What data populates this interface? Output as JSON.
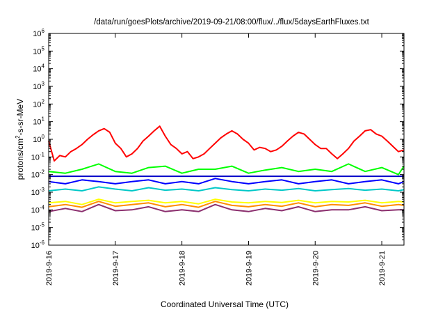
{
  "chart_data": {
    "type": "line",
    "title": "/data/run/goesPlots/archive/2019-09-21/08:00/flux/../flux/5daysEarthFluxes.txt",
    "xlabel": "Coordinated Universal Time (UTC)",
    "ylabel": {
      "pre": "protons/cm",
      "sup": "2",
      "post": "-s-sr-MeV"
    },
    "yscale": "log",
    "ylim": [
      1e-06,
      1000000.0
    ],
    "y_ticks": [
      {
        "value": 1e-06,
        "base": "10",
        "exp": "-6"
      },
      {
        "value": 1e-05,
        "base": "10",
        "exp": "-5"
      },
      {
        "value": 0.0001,
        "base": "10",
        "exp": "-4"
      },
      {
        "value": 0.001,
        "base": "10",
        "exp": "-3"
      },
      {
        "value": 0.01,
        "base": "10",
        "exp": "-2"
      },
      {
        "value": 0.1,
        "base": "10",
        "exp": "-1"
      },
      {
        "value": 1.0,
        "base": "10",
        "exp": "0"
      },
      {
        "value": 10.0,
        "base": "10",
        "exp": "1"
      },
      {
        "value": 100.0,
        "base": "10",
        "exp": "2"
      },
      {
        "value": 1000.0,
        "base": "10",
        "exp": "3"
      },
      {
        "value": 10000.0,
        "base": "10",
        "exp": "4"
      },
      {
        "value": 100000.0,
        "base": "10",
        "exp": "5"
      },
      {
        "value": 1000000.0,
        "base": "10",
        "exp": "6"
      }
    ],
    "xlim": [
      "2019-09-16 00:00",
      "2019-09-21 08:00"
    ],
    "x_ticks": [
      "2019-9-16",
      "2019-9-17",
      "2019-9-18",
      "2019-9-19",
      "2019-9-20",
      "2019-9-21"
    ],
    "grid": false,
    "legend": "none",
    "series": [
      {
        "color": "#ff0000",
        "x": [
          "2019-09-16 00:00",
          "2019-09-16 02:00",
          "2019-09-16 04:00",
          "2019-09-16 06:00",
          "2019-09-16 08:00",
          "2019-09-16 10:00",
          "2019-09-16 12:00",
          "2019-09-16 14:00",
          "2019-09-16 16:00",
          "2019-09-16 18:00",
          "2019-09-16 20:00",
          "2019-09-16 22:00",
          "2019-09-17 00:00",
          "2019-09-17 02:00",
          "2019-09-17 04:00",
          "2019-09-17 06:00",
          "2019-09-17 08:00",
          "2019-09-17 10:00",
          "2019-09-17 12:00",
          "2019-09-17 14:00",
          "2019-09-17 16:00",
          "2019-09-17 18:00",
          "2019-09-17 20:00",
          "2019-09-17 22:00",
          "2019-09-18 00:00",
          "2019-09-18 02:00",
          "2019-09-18 04:00",
          "2019-09-18 06:00",
          "2019-09-18 08:00",
          "2019-09-18 10:00",
          "2019-09-18 12:00",
          "2019-09-18 14:00",
          "2019-09-18 16:00",
          "2019-09-18 18:00",
          "2019-09-18 20:00",
          "2019-09-18 22:00",
          "2019-09-19 00:00",
          "2019-09-19 02:00",
          "2019-09-19 04:00",
          "2019-09-19 06:00",
          "2019-09-19 08:00",
          "2019-09-19 10:00",
          "2019-09-19 12:00",
          "2019-09-19 14:00",
          "2019-09-19 16:00",
          "2019-09-19 18:00",
          "2019-09-19 20:00",
          "2019-09-19 22:00",
          "2019-09-20 00:00",
          "2019-09-20 02:00",
          "2019-09-20 04:00",
          "2019-09-20 06:00",
          "2019-09-20 08:00",
          "2019-09-20 10:00",
          "2019-09-20 12:00",
          "2019-09-20 14:00",
          "2019-09-20 16:00",
          "2019-09-20 18:00",
          "2019-09-20 20:00",
          "2019-09-20 22:00",
          "2019-09-21 00:00",
          "2019-09-21 02:00",
          "2019-09-21 04:00",
          "2019-09-21 06:00",
          "2019-09-21 08:00"
        ],
        "y": [
          0.8,
          0.06,
          0.12,
          0.1,
          0.2,
          0.3,
          0.5,
          1.0,
          1.8,
          3.0,
          4.0,
          2.5,
          0.6,
          0.3,
          0.1,
          0.15,
          0.3,
          0.8,
          1.5,
          3.0,
          5.5,
          1.5,
          0.5,
          0.3,
          0.15,
          0.2,
          0.08,
          0.1,
          0.15,
          0.3,
          0.6,
          1.2,
          2.0,
          3.0,
          2.0,
          1.0,
          0.6,
          0.25,
          0.35,
          0.3,
          0.2,
          0.25,
          0.4,
          0.8,
          1.5,
          2.5,
          2.0,
          1.0,
          0.5,
          0.3,
          0.3,
          0.15,
          0.08,
          0.15,
          0.3,
          0.8,
          1.5,
          3.0,
          3.5,
          2.0,
          1.5,
          0.8,
          0.4,
          0.2,
          0.25
        ]
      },
      {
        "color": "#00ff00",
        "x": [
          "2019-09-16 00:00",
          "2019-09-16 06:00",
          "2019-09-16 12:00",
          "2019-09-16 18:00",
          "2019-09-17 00:00",
          "2019-09-17 06:00",
          "2019-09-17 12:00",
          "2019-09-17 18:00",
          "2019-09-18 00:00",
          "2019-09-18 06:00",
          "2019-09-18 12:00",
          "2019-09-18 18:00",
          "2019-09-19 00:00",
          "2019-09-19 06:00",
          "2019-09-19 12:00",
          "2019-09-19 18:00",
          "2019-09-20 00:00",
          "2019-09-20 06:00",
          "2019-09-20 12:00",
          "2019-09-20 18:00",
          "2019-09-21 00:00",
          "2019-09-21 06:00",
          "2019-09-21 08:00"
        ],
        "y": [
          0.015,
          0.012,
          0.02,
          0.04,
          0.015,
          0.012,
          0.025,
          0.03,
          0.012,
          0.02,
          0.02,
          0.03,
          0.012,
          0.018,
          0.025,
          0.015,
          0.02,
          0.015,
          0.04,
          0.015,
          0.025,
          0.01,
          0.03
        ]
      },
      {
        "color": "#0000ff",
        "x": [
          "2019-09-16 00:00",
          "2019-09-16 06:00",
          "2019-09-16 12:00",
          "2019-09-16 18:00",
          "2019-09-17 00:00",
          "2019-09-17 06:00",
          "2019-09-17 12:00",
          "2019-09-17 18:00",
          "2019-09-18 00:00",
          "2019-09-18 06:00",
          "2019-09-18 12:00",
          "2019-09-18 18:00",
          "2019-09-19 00:00",
          "2019-09-19 06:00",
          "2019-09-19 12:00",
          "2019-09-19 18:00",
          "2019-09-20 00:00",
          "2019-09-20 06:00",
          "2019-09-20 12:00",
          "2019-09-20 18:00",
          "2019-09-21 00:00",
          "2019-09-21 06:00",
          "2019-09-21 08:00"
        ],
        "y": [
          0.004,
          0.003,
          0.005,
          0.004,
          0.003,
          0.004,
          0.005,
          0.003,
          0.004,
          0.003,
          0.006,
          0.004,
          0.003,
          0.004,
          0.005,
          0.003,
          0.004,
          0.005,
          0.003,
          0.004,
          0.005,
          0.003,
          0.004
        ]
      },
      {
        "color": "#0000c8",
        "x": [
          "2019-09-16 00:00",
          "2019-09-17 00:00",
          "2019-09-18 00:00",
          "2019-09-19 00:00",
          "2019-09-20 00:00",
          "2019-09-21 00:00",
          "2019-09-21 08:00"
        ],
        "y": [
          0.008,
          0.008,
          0.008,
          0.008,
          0.008,
          0.008,
          0.008
        ]
      },
      {
        "color": "#00c8c8",
        "x": [
          "2019-09-16 00:00",
          "2019-09-16 06:00",
          "2019-09-16 12:00",
          "2019-09-16 18:00",
          "2019-09-17 00:00",
          "2019-09-17 06:00",
          "2019-09-17 12:00",
          "2019-09-17 18:00",
          "2019-09-18 00:00",
          "2019-09-18 06:00",
          "2019-09-18 12:00",
          "2019-09-18 18:00",
          "2019-09-19 00:00",
          "2019-09-19 06:00",
          "2019-09-19 12:00",
          "2019-09-19 18:00",
          "2019-09-20 00:00",
          "2019-09-20 06:00",
          "2019-09-20 12:00",
          "2019-09-20 18:00",
          "2019-09-21 00:00",
          "2019-09-21 06:00",
          "2019-09-21 08:00"
        ],
        "y": [
          0.0012,
          0.0015,
          0.0012,
          0.002,
          0.0015,
          0.0012,
          0.0018,
          0.0013,
          0.0015,
          0.0012,
          0.0018,
          0.0014,
          0.0012,
          0.0015,
          0.0013,
          0.0016,
          0.0012,
          0.0014,
          0.0016,
          0.0013,
          0.0015,
          0.0012,
          0.0014
        ]
      },
      {
        "color": "#ffff00",
        "x": [
          "2019-09-16 00:00",
          "2019-09-16 06:00",
          "2019-09-16 12:00",
          "2019-09-16 18:00",
          "2019-09-17 00:00",
          "2019-09-17 06:00",
          "2019-09-17 12:00",
          "2019-09-17 18:00",
          "2019-09-18 00:00",
          "2019-09-18 06:00",
          "2019-09-18 12:00",
          "2019-09-18 18:00",
          "2019-09-19 00:00",
          "2019-09-19 06:00",
          "2019-09-19 12:00",
          "2019-09-19 18:00",
          "2019-09-20 00:00",
          "2019-09-20 06:00",
          "2019-09-20 12:00",
          "2019-09-20 18:00",
          "2019-09-21 00:00",
          "2019-09-21 06:00",
          "2019-09-21 08:00"
        ],
        "y": [
          0.00025,
          0.0003,
          0.0002,
          0.0004,
          0.00025,
          0.0003,
          0.00035,
          0.00025,
          0.0003,
          0.00022,
          0.0004,
          0.00028,
          0.00025,
          0.0003,
          0.00026,
          0.00035,
          0.00025,
          0.0003,
          0.00028,
          0.00035,
          0.00025,
          0.0003,
          0.00028
        ]
      },
      {
        "color": "#ff8c00",
        "x": [
          "2019-09-16 00:00",
          "2019-09-16 06:00",
          "2019-09-16 12:00",
          "2019-09-16 18:00",
          "2019-09-17 00:00",
          "2019-09-17 06:00",
          "2019-09-17 12:00",
          "2019-09-17 18:00",
          "2019-09-18 00:00",
          "2019-09-18 06:00",
          "2019-09-18 12:00",
          "2019-09-18 18:00",
          "2019-09-19 00:00",
          "2019-09-19 06:00",
          "2019-09-19 12:00",
          "2019-09-19 18:00",
          "2019-09-20 00:00",
          "2019-09-20 06:00",
          "2019-09-20 12:00",
          "2019-09-20 18:00",
          "2019-09-21 00:00",
          "2019-09-21 06:00",
          "2019-09-21 08:00"
        ],
        "y": [
          0.00015,
          0.0002,
          0.00014,
          0.0003,
          0.00016,
          0.0002,
          0.00025,
          0.00015,
          0.0002,
          0.00014,
          0.0003,
          0.00018,
          0.00015,
          0.0002,
          0.00016,
          0.00025,
          0.00015,
          0.0002,
          0.00018,
          0.00025,
          0.00016,
          0.0002,
          0.00018
        ]
      },
      {
        "color": "#8b2f6e",
        "x": [
          "2019-09-16 00:00",
          "2019-09-16 06:00",
          "2019-09-16 12:00",
          "2019-09-16 18:00",
          "2019-09-17 00:00",
          "2019-09-17 06:00",
          "2019-09-17 12:00",
          "2019-09-17 18:00",
          "2019-09-18 00:00",
          "2019-09-18 06:00",
          "2019-09-18 12:00",
          "2019-09-18 18:00",
          "2019-09-19 00:00",
          "2019-09-19 06:00",
          "2019-09-19 12:00",
          "2019-09-19 18:00",
          "2019-09-20 00:00",
          "2019-09-20 06:00",
          "2019-09-20 12:00",
          "2019-09-20 18:00",
          "2019-09-21 00:00",
          "2019-09-21 06:00",
          "2019-09-21 08:00"
        ],
        "y": [
          8e-05,
          0.00012,
          8e-05,
          0.0002,
          9e-05,
          0.0001,
          0.00015,
          8e-05,
          0.0001,
          8e-05,
          0.0002,
          0.0001,
          8e-05,
          0.00012,
          9e-05,
          0.00015,
          8e-05,
          0.0001,
          0.0001,
          0.00015,
          9e-05,
          0.0001,
          0.0001
        ]
      }
    ]
  }
}
